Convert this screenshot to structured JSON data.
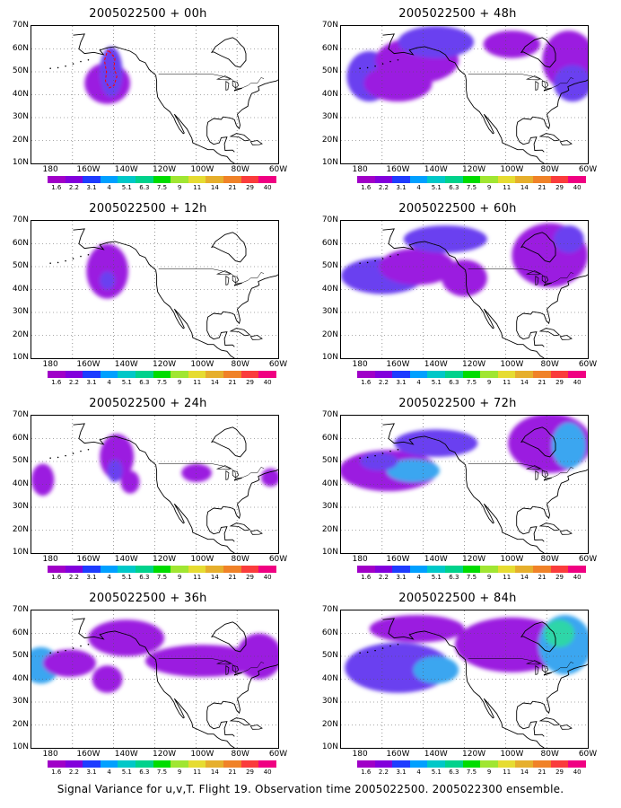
{
  "panels": [
    {
      "title": "2005022500 + 00h",
      "blobs": [
        {
          "lon": -150,
          "lat": 45,
          "rlon": 12,
          "rlat": 9,
          "c": 0
        },
        {
          "lon": -148,
          "lat": 50,
          "rlon": 6,
          "rlat": 11,
          "c": 1
        }
      ],
      "contour": true
    },
    {
      "title": "2005022500 + 48h",
      "blobs": [
        {
          "lon": -175,
          "lat": 48,
          "rlon": 12,
          "rlat": 11,
          "c": 1
        },
        {
          "lon": -150,
          "lat": 55,
          "rlon": 22,
          "rlat": 10,
          "c": 0
        },
        {
          "lon": -160,
          "lat": 45,
          "rlon": 18,
          "rlat": 8,
          "c": 0
        },
        {
          "lon": -140,
          "lat": 63,
          "rlon": 20,
          "rlat": 7,
          "c": 1
        },
        {
          "lon": -100,
          "lat": 62,
          "rlon": 15,
          "rlat": 6,
          "c": 0
        },
        {
          "lon": -70,
          "lat": 55,
          "rlon": 14,
          "rlat": 13,
          "c": 0
        },
        {
          "lon": -68,
          "lat": 45,
          "rlon": 10,
          "rlat": 8,
          "c": 1
        }
      ],
      "contour": false
    },
    {
      "title": "2005022500 + 12h",
      "blobs": [
        {
          "lon": -150,
          "lat": 48,
          "rlon": 11,
          "rlat": 12,
          "c": 0
        },
        {
          "lon": -150,
          "lat": 44,
          "rlon": 4,
          "rlat": 4,
          "c": 1
        }
      ],
      "contour": false
    },
    {
      "title": "2005022500 + 60h",
      "blobs": [
        {
          "lon": -168,
          "lat": 46,
          "rlon": 22,
          "rlat": 8,
          "c": 1
        },
        {
          "lon": -150,
          "lat": 50,
          "rlon": 20,
          "rlat": 8,
          "c": 0
        },
        {
          "lon": -135,
          "lat": 62,
          "rlon": 22,
          "rlat": 6,
          "c": 1
        },
        {
          "lon": -125,
          "lat": 45,
          "rlon": 12,
          "rlat": 8,
          "c": 0
        },
        {
          "lon": -80,
          "lat": 55,
          "rlon": 20,
          "rlat": 14,
          "c": 0
        },
        {
          "lon": -70,
          "lat": 62,
          "rlon": 8,
          "rlat": 6,
          "c": 1
        }
      ],
      "contour": false
    },
    {
      "title": "2005022500 + 24h",
      "blobs": [
        {
          "lon": -184,
          "lat": 42,
          "rlon": 6,
          "rlat": 7,
          "c": 0
        },
        {
          "lon": -145,
          "lat": 52,
          "rlon": 9,
          "rlat": 10,
          "c": 0
        },
        {
          "lon": -146,
          "lat": 46,
          "rlon": 4,
          "rlat": 5,
          "c": 1
        },
        {
          "lon": -138,
          "lat": 41,
          "rlon": 5,
          "rlat": 5,
          "c": 0
        },
        {
          "lon": -103,
          "lat": 45,
          "rlon": 8,
          "rlat": 4,
          "c": 0
        },
        {
          "lon": -64,
          "lat": 43,
          "rlon": 5,
          "rlat": 4,
          "c": 0
        }
      ],
      "contour": false
    },
    {
      "title": "2005022500 + 72h",
      "blobs": [
        {
          "lon": -165,
          "lat": 46,
          "rlon": 26,
          "rlat": 9,
          "c": 0
        },
        {
          "lon": -152,
          "lat": 46,
          "rlon": 14,
          "rlat": 5,
          "c": 2
        },
        {
          "lon": -170,
          "lat": 50,
          "rlon": 10,
          "rlat": 4,
          "c": 1
        },
        {
          "lon": -140,
          "lat": 58,
          "rlon": 22,
          "rlat": 6,
          "c": 1
        },
        {
          "lon": -80,
          "lat": 58,
          "rlon": 22,
          "rlat": 13,
          "c": 0
        },
        {
          "lon": -70,
          "lat": 57,
          "rlon": 9,
          "rlat": 10,
          "c": 2
        }
      ],
      "contour": false
    },
    {
      "title": "2005022500 + 36h",
      "blobs": [
        {
          "lon": -185,
          "lat": 46,
          "rlon": 10,
          "rlat": 8,
          "c": 2
        },
        {
          "lon": -170,
          "lat": 47,
          "rlon": 14,
          "rlat": 6,
          "c": 0
        },
        {
          "lon": -140,
          "lat": 58,
          "rlon": 20,
          "rlat": 8,
          "c": 0
        },
        {
          "lon": -150,
          "lat": 40,
          "rlon": 8,
          "rlat": 6,
          "c": 0
        },
        {
          "lon": -100,
          "lat": 48,
          "rlon": 30,
          "rlat": 7,
          "c": 0
        },
        {
          "lon": -70,
          "lat": 50,
          "rlon": 12,
          "rlat": 10,
          "c": 0
        }
      ],
      "contour": false
    },
    {
      "title": "2005022500 + 84h",
      "blobs": [
        {
          "lon": -160,
          "lat": 45,
          "rlon": 28,
          "rlat": 11,
          "c": 1
        },
        {
          "lon": -140,
          "lat": 44,
          "rlon": 12,
          "rlat": 6,
          "c": 2
        },
        {
          "lon": -150,
          "lat": 62,
          "rlon": 25,
          "rlat": 6,
          "c": 0
        },
        {
          "lon": -100,
          "lat": 55,
          "rlon": 30,
          "rlat": 12,
          "c": 0
        },
        {
          "lon": -72,
          "lat": 55,
          "rlon": 14,
          "rlat": 13,
          "c": 2
        },
        {
          "lon": -75,
          "lat": 60,
          "rlon": 8,
          "rlat": 6,
          "c": 3
        }
      ],
      "contour": false
    }
  ],
  "ylabels": [
    "70N",
    "60N",
    "50N",
    "40N",
    "30N",
    "20N",
    "10N"
  ],
  "xlabels": [
    "180",
    "160W",
    "140W",
    "120W",
    "100W",
    "80W",
    "60W"
  ],
  "colorbar": {
    "colors": [
      "#a000c8",
      "#8200dc",
      "#1e3cff",
      "#00a0ff",
      "#00c8c8",
      "#00d28c",
      "#00dc00",
      "#a0e632",
      "#e6dc32",
      "#e6af2d",
      "#f08228",
      "#fa3c3c",
      "#f00082"
    ],
    "labels": [
      "1.6",
      "2.2",
      "3.1",
      "4",
      "5.1",
      "6.3",
      "7.5",
      "9",
      "11",
      "14",
      "21",
      "29",
      "40"
    ]
  },
  "shade_colors": [
    "#9b1fe0",
    "#6a3ff0",
    "#3aa6f0",
    "#2fd6a8"
  ],
  "caption": "Signal Variance for u,v,T. Flight 19. Observation time 2005022500. 2005022300 ensemble."
}
